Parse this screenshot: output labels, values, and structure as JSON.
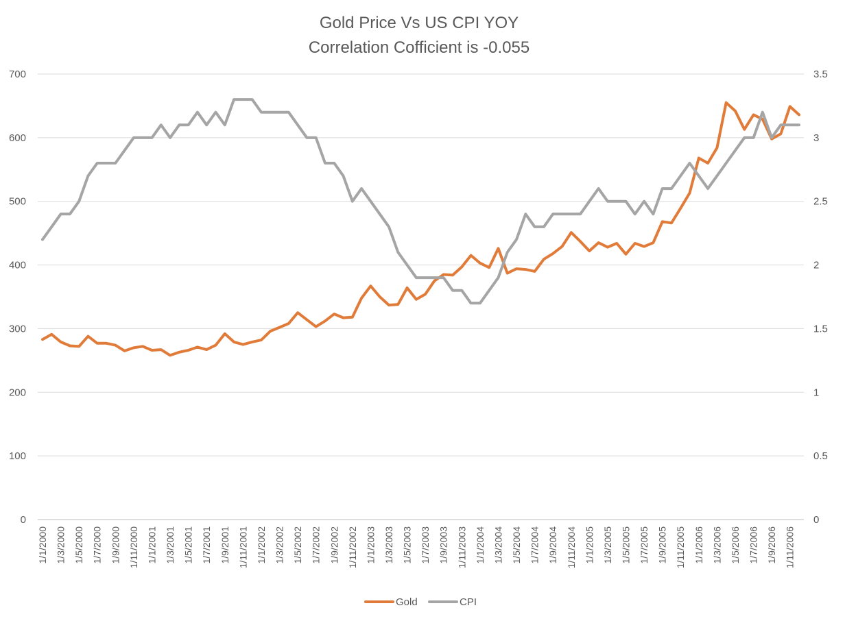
{
  "chart_data": {
    "type": "line",
    "title": "Gold Price Vs US CPI YOY",
    "subtitle": "Correlation Cofficient is -0.055",
    "y_left": {
      "min": 0,
      "max": 700,
      "step": 100,
      "ticks": [
        "0",
        "100",
        "200",
        "300",
        "400",
        "500",
        "600",
        "700"
      ]
    },
    "y_right": {
      "min": 0,
      "max": 3.5,
      "step": 0.5,
      "ticks": [
        "0",
        "0.5",
        "1",
        "1.5",
        "2",
        "2.5",
        "3",
        "3.5"
      ]
    },
    "x": [
      "1/1/2000",
      "1/2/2000",
      "1/3/2000",
      "1/4/2000",
      "1/5/2000",
      "1/6/2000",
      "1/7/2000",
      "1/8/2000",
      "1/9/2000",
      "1/10/2000",
      "1/11/2000",
      "1/12/2000",
      "1/1/2001",
      "1/2/2001",
      "1/3/2001",
      "1/4/2001",
      "1/5/2001",
      "1/6/2001",
      "1/7/2001",
      "1/8/2001",
      "1/9/2001",
      "1/10/2001",
      "1/11/2001",
      "1/12/2001",
      "1/1/2002",
      "1/2/2002",
      "1/3/2002",
      "1/4/2002",
      "1/5/2002",
      "1/6/2002",
      "1/7/2002",
      "1/8/2002",
      "1/9/2002",
      "1/10/2002",
      "1/11/2002",
      "1/12/2002",
      "1/1/2003",
      "1/2/2003",
      "1/3/2003",
      "1/4/2003",
      "1/5/2003",
      "1/6/2003",
      "1/7/2003",
      "1/8/2003",
      "1/9/2003",
      "1/10/2003",
      "1/11/2003",
      "1/12/2003",
      "1/1/2004",
      "1/2/2004",
      "1/3/2004",
      "1/4/2004",
      "1/5/2004",
      "1/6/2004",
      "1/7/2004",
      "1/8/2004",
      "1/9/2004",
      "1/10/2004",
      "1/11/2004",
      "1/12/2004",
      "1/1/2005",
      "1/2/2005",
      "1/3/2005",
      "1/4/2005",
      "1/5/2005",
      "1/6/2005",
      "1/7/2005",
      "1/8/2005",
      "1/9/2005",
      "1/10/2005",
      "1/11/2005",
      "1/12/2005",
      "1/1/2006",
      "1/2/2006",
      "1/3/2006",
      "1/4/2006",
      "1/5/2006",
      "1/6/2006",
      "1/7/2006",
      "1/8/2006",
      "1/9/2006",
      "1/10/2006",
      "1/11/2006",
      "1/12/2006"
    ],
    "x_tick_labels_every": 2,
    "series": [
      {
        "name": "Gold",
        "axis": "left",
        "color": "#E07B39",
        "values": [
          283,
          291,
          279,
          273,
          272,
          288,
          277,
          277,
          274,
          265,
          270,
          272,
          266,
          267,
          258,
          263,
          266,
          271,
          267,
          274,
          292,
          279,
          275,
          279,
          282,
          296,
          302,
          308,
          325,
          314,
          303,
          312,
          323,
          317,
          318,
          348,
          367,
          350,
          337,
          338,
          364,
          346,
          354,
          375,
          385,
          384,
          397,
          415,
          403,
          396,
          426,
          387,
          394,
          393,
          390,
          409,
          418,
          429,
          451,
          437,
          422,
          435,
          428,
          434,
          417,
          434,
          429,
          435,
          468,
          466,
          489,
          513,
          568,
          560,
          584,
          655,
          642,
          613,
          636,
          629,
          598,
          606,
          649,
          636
        ]
      },
      {
        "name": "CPI",
        "axis": "right",
        "color": "#A5A5A5",
        "values": [
          2.2,
          2.3,
          2.4,
          2.4,
          2.5,
          2.7,
          2.8,
          2.8,
          2.8,
          2.9,
          3.0,
          3.0,
          3.0,
          3.1,
          3.0,
          3.1,
          3.1,
          3.2,
          3.1,
          3.2,
          3.1,
          3.3,
          3.3,
          3.3,
          3.2,
          3.2,
          3.2,
          3.2,
          3.1,
          3.0,
          3.0,
          2.8,
          2.8,
          2.7,
          2.5,
          2.6,
          2.5,
          2.4,
          2.3,
          2.1,
          2.0,
          1.9,
          1.9,
          1.9,
          1.9,
          1.8,
          1.8,
          1.7,
          1.7,
          1.8,
          1.9,
          2.1,
          2.2,
          2.4,
          2.3,
          2.3,
          2.4,
          2.4,
          2.4,
          2.4,
          2.5,
          2.6,
          2.5,
          2.5,
          2.5,
          2.4,
          2.5,
          2.4,
          2.6,
          2.6,
          2.7,
          2.8,
          2.7,
          2.6,
          2.7,
          2.8,
          2.9,
          3.0,
          3.0,
          3.2,
          3.0,
          3.1,
          3.1,
          3.1
        ]
      }
    ],
    "legend": {
      "position": "bottom",
      "items": [
        "Gold",
        "CPI"
      ]
    },
    "grid": true
  }
}
